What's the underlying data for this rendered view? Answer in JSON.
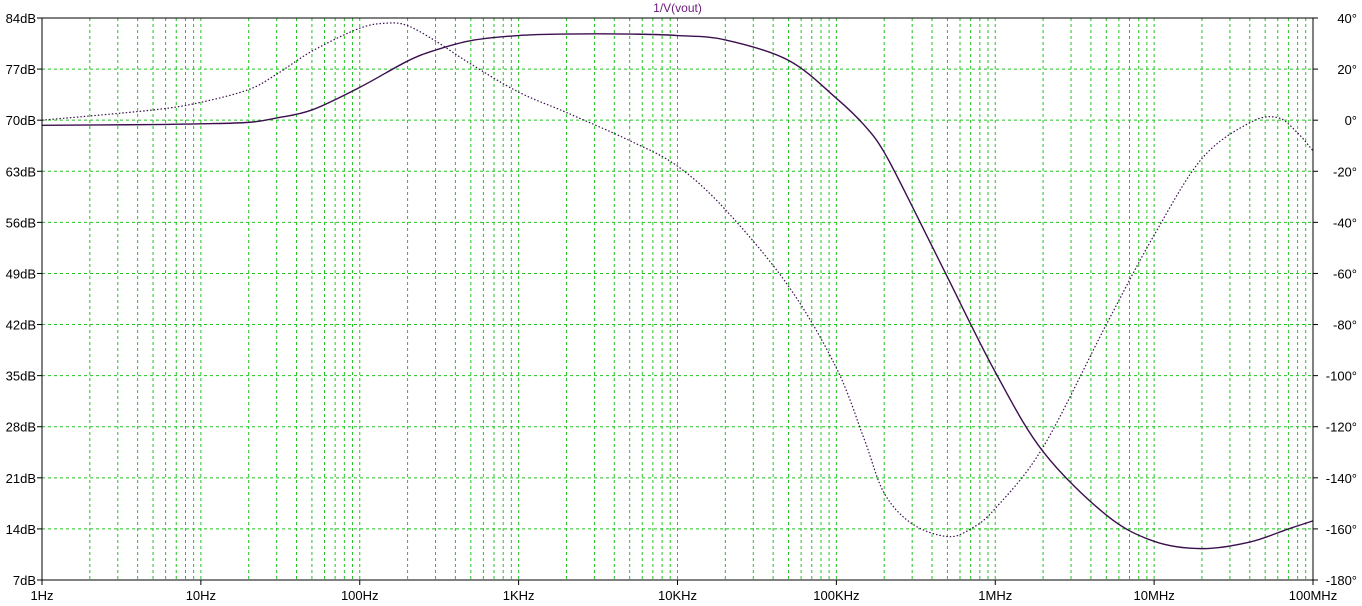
{
  "chart_data": {
    "type": "line",
    "title": "1/V(vout)",
    "x_scale": "log",
    "x_range_hz": [
      1,
      100000000
    ],
    "x_tick_values": [
      1,
      10,
      100,
      1000,
      10000,
      100000,
      1000000,
      10000000,
      100000000
    ],
    "x_tick_labels": [
      "1Hz",
      "10Hz",
      "100Hz",
      "1KHz",
      "10KHz",
      "100KHz",
      "1MHz",
      "10MHz",
      "100MHz"
    ],
    "y_left_range_db": [
      7,
      84
    ],
    "y_left_tick_values": [
      84,
      77,
      70,
      63,
      56,
      49,
      42,
      35,
      28,
      21,
      14,
      7
    ],
    "y_left_tick_labels": [
      "84dB",
      "77dB",
      "70dB",
      "63dB",
      "56dB",
      "49dB",
      "42dB",
      "35dB",
      "28dB",
      "21dB",
      "14dB",
      "7dB"
    ],
    "y_right_range_deg": [
      -180,
      40
    ],
    "y_right_tick_values": [
      40,
      20,
      0,
      -20,
      -40,
      -60,
      -80,
      -100,
      -120,
      -140,
      -160,
      -180
    ],
    "y_right_tick_labels": [
      "40°",
      "20°",
      "0°",
      "-20°",
      "-40°",
      "-60°",
      "-80°",
      "-100°",
      "-120°",
      "-140°",
      "-160°",
      "-180°"
    ],
    "grid": true,
    "colors": {
      "grid": "#22c322",
      "trace": "#3b0f4e",
      "title": "#6b1a7a",
      "frame": "#000000",
      "background": "#ffffff"
    },
    "series": [
      {
        "name": "magnitude",
        "style": "solid",
        "axis": "left",
        "x": [
          1,
          5,
          10,
          20,
          30,
          50,
          100,
          200,
          300,
          500,
          1000,
          2000,
          5000,
          10000,
          20000,
          50000,
          100000,
          150000,
          200000,
          300000,
          500000,
          1000000,
          2000000,
          5000000,
          10000000,
          20000000,
          40000000,
          70000000,
          100000000
        ],
        "y": [
          69.3,
          69.4,
          69.5,
          69.7,
          70.3,
          71.4,
          74.5,
          78.1,
          79.6,
          80.9,
          81.6,
          81.8,
          81.8,
          81.6,
          81.0,
          78.2,
          73.0,
          69.3,
          65.6,
          58.2,
          48.5,
          35.5,
          24.6,
          15.9,
          12.3,
          11.3,
          12.2,
          14.0,
          15.1
        ]
      },
      {
        "name": "phase",
        "style": "dotted",
        "axis": "right",
        "x": [
          1,
          5,
          10,
          20,
          30,
          50,
          100,
          150,
          200,
          300,
          500,
          1000,
          2000,
          5000,
          10000,
          20000,
          50000,
          100000,
          150000,
          200000,
          300000,
          500000,
          700000,
          1000000,
          2000000,
          5000000,
          10000000,
          20000000,
          40000000,
          60000000,
          80000000,
          100000000
        ],
        "y": [
          0,
          4,
          7,
          12,
          18,
          27,
          36,
          38,
          37,
          31,
          22,
          11,
          3,
          -8,
          -18,
          -35,
          -65,
          -97,
          -125,
          -146,
          -158,
          -163,
          -160,
          -152,
          -128,
          -80,
          -45,
          -15,
          -1,
          1,
          -5,
          -12
        ]
      }
    ]
  }
}
